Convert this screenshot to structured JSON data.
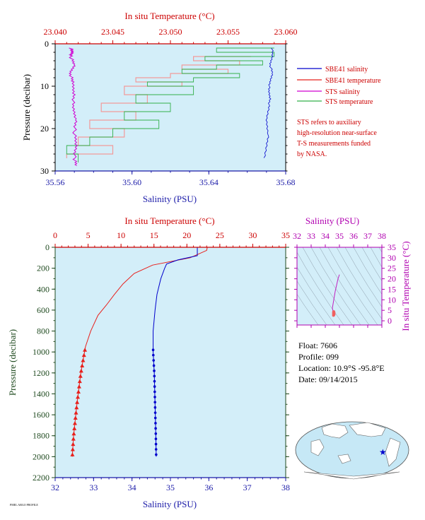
{
  "colors": {
    "plot_bg": "#d3eef9",
    "sbe_salinity": "#0000cc",
    "sbe_temperature": "#e8201c",
    "sts_salinity": "#d000d0",
    "sts_temperature": "#33b04a",
    "sts_temp_alt": "#f29a9a"
  },
  "chart_data": [
    {
      "id": "upper",
      "type": "line",
      "top_axis": {
        "label": "In situ Temperature (°C)",
        "range": [
          23.04,
          23.06
        ],
        "ticks": [
          "23.040",
          "23.045",
          "23.050",
          "23.055",
          "23.060"
        ]
      },
      "bottom_axis": {
        "label": "Salinity (PSU)",
        "range": [
          35.56,
          35.68
        ],
        "ticks": [
          "35.56",
          "35.60",
          "35.64",
          "35.68"
        ]
      },
      "y_axis": {
        "label": "Pressure (decibar)",
        "range": [
          0,
          30
        ],
        "inverted": true,
        "ticks": [
          "0",
          "10",
          "20",
          "30"
        ]
      },
      "legend": [
        "SBE41 salinity",
        "SBE41 temperature",
        "STS salinity",
        "STS temperature"
      ],
      "note": [
        "STS refers to auxiliary",
        "high-resolution near-surface",
        "T-S measurements funded",
        "by NASA."
      ],
      "series": [
        {
          "name": "SBE41 salinity",
          "axis": "salinity",
          "x": [
            35.673,
            35.673,
            35.672,
            35.673,
            35.672,
            35.671,
            35.672,
            35.671,
            35.67,
            35.671,
            35.67,
            35.669
          ],
          "y": [
            1,
            3,
            5,
            7,
            9,
            11,
            13,
            15,
            18,
            21,
            24,
            27.5
          ]
        },
        {
          "name": "STS salinity",
          "axis": "salinity",
          "x": [
            35.568,
            35.569,
            35.568,
            35.57,
            35.568,
            35.569,
            35.57,
            35.569,
            35.571,
            35.57,
            35.571,
            35.57,
            35.571
          ],
          "y": [
            1,
            2,
            3,
            5,
            7,
            9,
            12,
            15,
            18,
            21,
            24,
            27,
            29
          ]
        },
        {
          "name": "STS temperature",
          "axis": "temperature",
          "x": [
            23.059,
            23.054,
            23.059,
            23.053,
            23.058,
            23.054,
            23.051,
            23.056,
            23.052,
            23.048,
            23.052,
            23.047,
            23.05,
            23.046,
            23.049,
            23.045,
            23.043,
            23.041,
            23.042
          ],
          "y": [
            1,
            2,
            3,
            4,
            5,
            6,
            7,
            8,
            9,
            10,
            12,
            14,
            16,
            18,
            20,
            22,
            24,
            26,
            28
          ]
        },
        {
          "name": "STS temperature (alt)",
          "axis": "temperature",
          "x": [
            23.057,
            23.052,
            23.056,
            23.051,
            23.055,
            23.05,
            23.047,
            23.051,
            23.046,
            23.048,
            23.044,
            23.047,
            23.043,
            23.046,
            23.042,
            23.045,
            23.041
          ],
          "y": [
            3,
            4,
            5,
            6,
            7,
            8,
            9,
            10,
            12,
            14,
            16,
            18,
            20,
            22,
            24,
            26,
            27
          ]
        }
      ]
    },
    {
      "id": "lower",
      "type": "line",
      "top_axis": {
        "label": "In situ Temperature (°C)",
        "range": [
          0,
          35
        ],
        "ticks": [
          "0",
          "5",
          "10",
          "15",
          "20",
          "25",
          "30",
          "35"
        ]
      },
      "bottom_axis": {
        "label": "Salinity (PSU)",
        "range": [
          32,
          38
        ],
        "ticks": [
          "32",
          "33",
          "34",
          "35",
          "36",
          "37",
          "38"
        ]
      },
      "y_axis": {
        "label": "Pressure (decibar)",
        "range": [
          0,
          2200
        ],
        "inverted": true,
        "ticks": [
          "0",
          "200",
          "400",
          "600",
          "800",
          "1000",
          "1200",
          "1400",
          "1600",
          "1800",
          "2000",
          "2200"
        ]
      },
      "series": [
        {
          "name": "SBE41 temperature",
          "axis": "temperature",
          "x": [
            23.1,
            23.0,
            20.5,
            14.8,
            12.0,
            10.3,
            9.0,
            7.8,
            6.5,
            5.4,
            4.6,
            3.9,
            3.3,
            2.8,
            2.6
          ],
          "y": [
            0,
            30,
            100,
            170,
            250,
            350,
            450,
            550,
            650,
            800,
            950,
            1200,
            1500,
            1800,
            2000
          ],
          "markers_from": 980
        },
        {
          "name": "SBE41 salinity",
          "axis": "salinity",
          "x": [
            35.7,
            35.7,
            35.2,
            34.9,
            34.85,
            34.75,
            34.65,
            34.6,
            34.55,
            34.55,
            34.58,
            34.6,
            34.62,
            34.63
          ],
          "y": [
            0,
            80,
            120,
            160,
            200,
            300,
            450,
            600,
            800,
            1000,
            1200,
            1500,
            1800,
            2000
          ],
          "markers_from": 980
        }
      ]
    },
    {
      "id": "ts",
      "type": "line",
      "top_axis": {
        "label": "Salinity (PSU)",
        "range": [
          32,
          38
        ],
        "ticks": [
          "32",
          "33",
          "34",
          "35",
          "36",
          "37",
          "38"
        ]
      },
      "right_axis": {
        "label": "In situ Temperature (°C)",
        "range": [
          -2,
          35
        ],
        "ticks": [
          "0",
          "5",
          "10",
          "15",
          "20",
          "25",
          "30",
          "35"
        ]
      },
      "series": [
        {
          "name": "T-S",
          "x": [
            35.0,
            34.9,
            34.8,
            34.7,
            34.65,
            34.6,
            34.55,
            34.5,
            34.55,
            34.6,
            34.63
          ],
          "y": [
            22,
            20,
            17,
            14,
            12,
            10,
            8,
            6,
            4.5,
            3.5,
            2.6
          ]
        }
      ]
    }
  ],
  "info": {
    "float": "Float:  7606",
    "profile": "Profile:  099",
    "location": "Location:  10.9°S  -95.8°E",
    "date": "Date:  09/14/2015"
  },
  "footer": {
    "code": "PMEL ARGO PROFILE"
  }
}
